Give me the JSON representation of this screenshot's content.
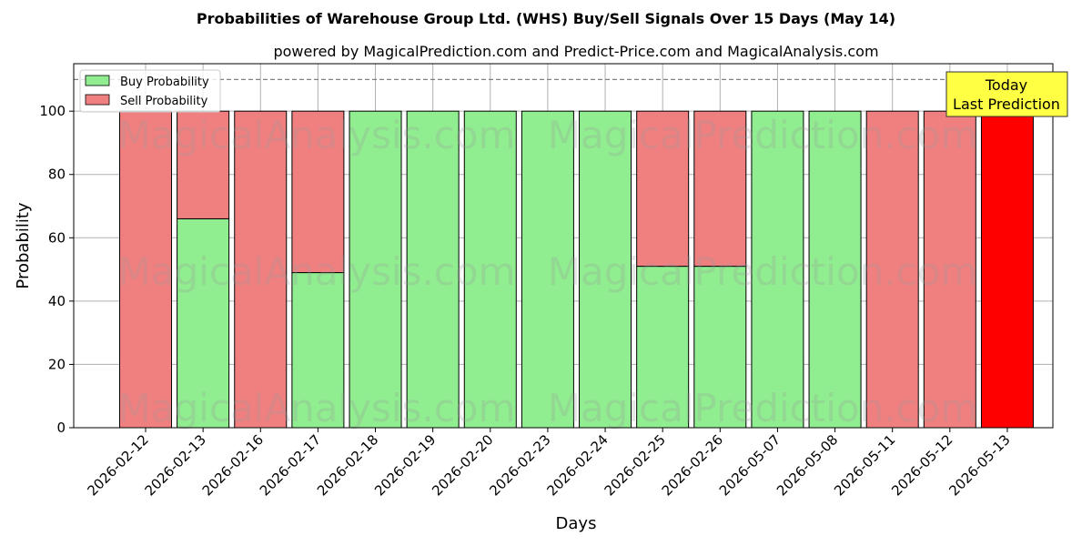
{
  "title": "Probabilities of Warehouse Group Ltd. (WHS) Buy/Sell Signals Over 15 Days (May 14)",
  "subtitle": "powered by MagicalPrediction.com and Predict-Price.com and MagicalAnalysis.com",
  "watermarks": [
    "MagicalAnalysis.com",
    "MagicalPrediction.com"
  ],
  "annotation": {
    "line1": "Today",
    "line2": "Last Prediction",
    "color": "#ffff44"
  },
  "colors": {
    "buy": "#90ee90",
    "sell": "#f08080",
    "today": "#ff0000"
  },
  "chart_data": {
    "type": "bar",
    "title": "Probabilities of Warehouse Group Ltd. (WHS) Buy/Sell Signals Over 15 Days (May 14)",
    "xlabel": "Days",
    "ylabel": "Probability",
    "ylim": [
      0,
      115
    ],
    "yticks": [
      0,
      20,
      40,
      60,
      80,
      100
    ],
    "reference_line": 110,
    "grid": true,
    "legend_position": "top-left",
    "categories": [
      "2026-02-12",
      "2026-02-13",
      "2026-02-16",
      "2026-02-17",
      "2026-02-18",
      "2026-02-19",
      "2026-02-20",
      "2026-02-23",
      "2026-02-24",
      "2026-02-25",
      "2026-02-26",
      "2026-05-07",
      "2026-05-08",
      "2026-05-11",
      "2026-05-12",
      "2026-05-13"
    ],
    "series": [
      {
        "name": "Buy Probability",
        "values": [
          0,
          66,
          0,
          49,
          100,
          100,
          100,
          100,
          100,
          51,
          51,
          100,
          100,
          0,
          0,
          0
        ]
      },
      {
        "name": "Sell Probability",
        "values": [
          100,
          34,
          100,
          51,
          0,
          0,
          0,
          0,
          0,
          49,
          49,
          0,
          0,
          100,
          100,
          100
        ]
      }
    ]
  }
}
